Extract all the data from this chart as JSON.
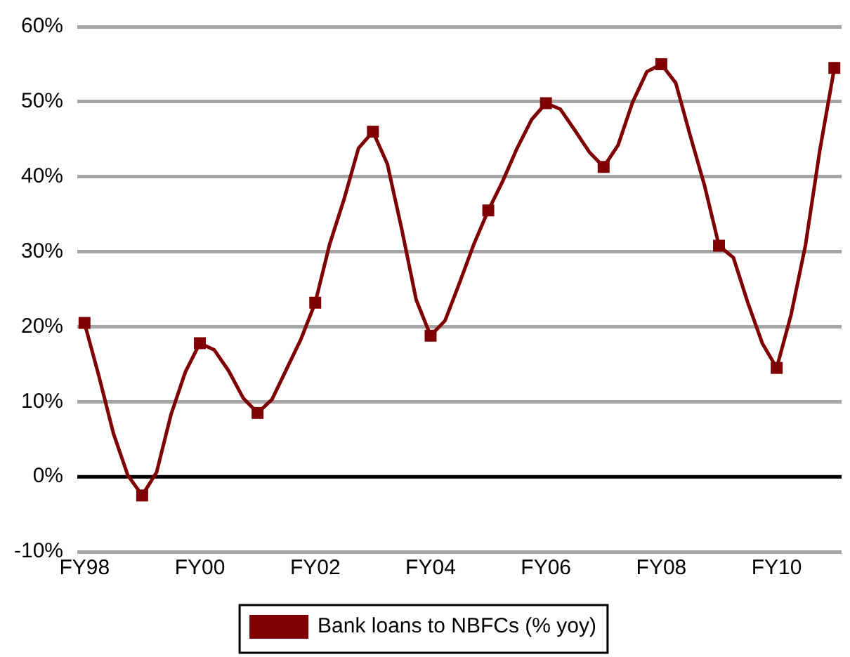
{
  "chart_data": {
    "type": "line",
    "categories": [
      "FY98",
      null,
      null,
      null,
      null,
      null,
      null,
      null,
      "FY00",
      null,
      null,
      null,
      null,
      null,
      null,
      null,
      "FY02",
      null,
      null,
      null,
      null,
      null,
      null,
      null,
      "FY04",
      null,
      null,
      null,
      null,
      null,
      null,
      null,
      "FY06",
      null,
      null,
      null,
      null,
      null,
      null,
      null,
      "FY08",
      null,
      null,
      null,
      null,
      null,
      null,
      null,
      "FY10",
      null,
      null,
      null,
      null
    ],
    "series": [
      {
        "name": "Bank loans to NBFCs (% yoy)",
        "color": "#7f0000",
        "marker": "none",
        "values": [
          20.5,
          13.4,
          5.8,
          0.2,
          -2.5,
          0.6,
          8.3,
          14.0,
          17.8,
          16.9,
          14.1,
          10.5,
          8.5,
          10.3,
          14.3,
          18.3,
          23.2,
          31,
          37,
          43.8,
          46,
          41.7,
          33,
          23.6,
          18.8,
          20.8,
          25.8,
          31,
          35.5,
          39.4,
          43.8,
          47.6,
          49.8,
          49,
          46.2,
          43.3,
          41.3,
          44.2,
          49.9,
          54,
          55,
          52.5,
          45.5,
          38.8,
          30.8,
          29.2,
          23.2,
          17.8,
          14.5,
          21.6,
          30.9,
          43.6,
          54.5
        ]
      },
      {
        "type": "scatter",
        "color": "#7f0000",
        "values": [
          20.5,
          null,
          null,
          null,
          -2.5,
          null,
          null,
          null,
          17.8,
          null,
          null,
          null,
          8.5,
          null,
          null,
          null,
          23.2,
          null,
          null,
          null,
          46,
          null,
          null,
          null,
          18.8,
          null,
          null,
          null,
          35.5,
          null,
          null,
          null,
          49.8,
          null,
          null,
          null,
          41.3,
          null,
          null,
          null,
          55,
          null,
          null,
          null,
          30.8,
          null,
          null,
          null,
          14.5,
          null,
          null,
          null,
          54.5
        ]
      }
    ],
    "marker": "square",
    "ylim": [
      -10,
      60
    ],
    "yticks": [
      {
        "value": -10,
        "label": "-10%"
      },
      {
        "value": 0,
        "label": "0%"
      },
      {
        "value": 10,
        "label": "10%"
      },
      {
        "value": 20,
        "label": "20%"
      },
      {
        "value": 30,
        "label": "30%"
      },
      {
        "value": 40,
        "label": "40%"
      },
      {
        "value": 50,
        "label": "50%"
      },
      {
        "value": 60,
        "label": "60%"
      }
    ],
    "grid": "y",
    "legend": "bottom",
    "ref_lines": [
      {
        "axis": "y",
        "value": 0,
        "color": "#000000"
      }
    ]
  }
}
